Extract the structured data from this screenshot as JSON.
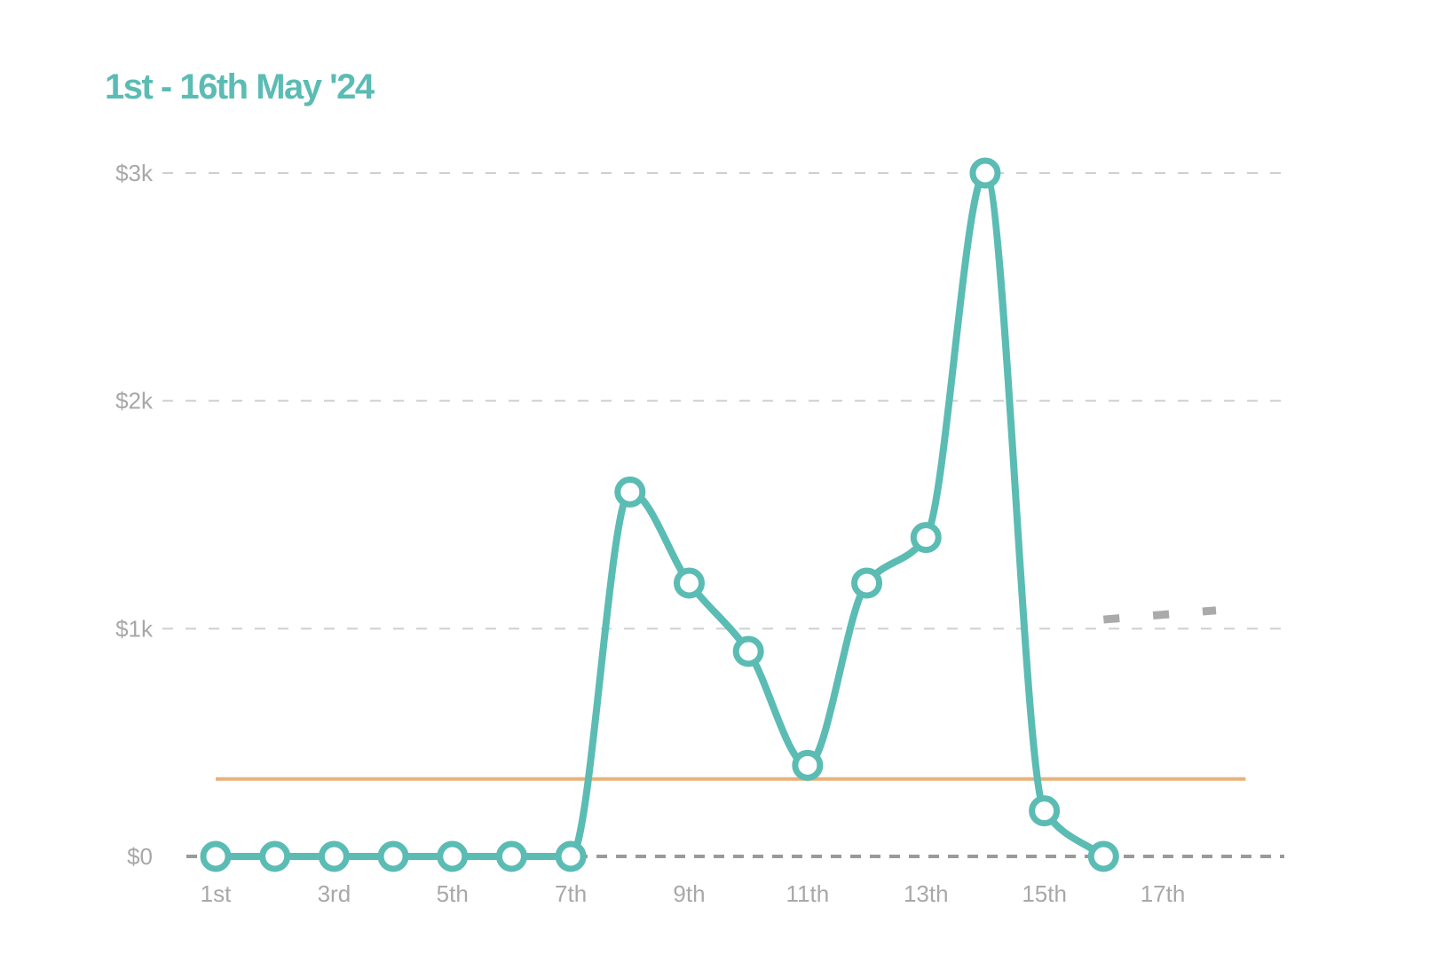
{
  "title": "1st - 16th May '24",
  "colors": {
    "line": "#5bbcb4",
    "average": "#e8b27a",
    "grid": "#cfcfcf",
    "baseline": "#9a9a9a",
    "forecast": "#aaaaaa",
    "tick": "#a8a8a8",
    "marker_fill": "#ffffff"
  },
  "chart_data": {
    "type": "line",
    "title": "1st - 16th May '24",
    "xlabel": "",
    "ylabel": "",
    "x_tick_labels": [
      "1st",
      "3rd",
      "5th",
      "7th",
      "9th",
      "11th",
      "13th",
      "15th",
      "17th"
    ],
    "x_tick_values": [
      1,
      3,
      5,
      7,
      9,
      11,
      13,
      15,
      17
    ],
    "y_tick_labels": [
      "$0",
      "$1k",
      "$2k",
      "$3k"
    ],
    "y_tick_values": [
      0,
      1000,
      2000,
      3000
    ],
    "xlim": [
      1,
      17.9
    ],
    "ylim": [
      0,
      3000
    ],
    "grid": "horizontal dashed",
    "legend": "none",
    "series": [
      {
        "x": [
          1,
          2,
          3,
          4,
          5,
          6,
          7,
          8,
          9,
          10,
          11,
          12,
          13,
          14,
          15,
          16
        ],
        "y": [
          0,
          0,
          0,
          0,
          0,
          0,
          0,
          1600,
          1200,
          900,
          400,
          1200,
          1400,
          3000,
          200,
          0
        ]
      }
    ],
    "reference_line": {
      "y": 340,
      "x_range": [
        1,
        18.4
      ]
    },
    "projection": {
      "x": [
        16,
        17.9
      ],
      "y": [
        1040,
        1080
      ]
    }
  }
}
